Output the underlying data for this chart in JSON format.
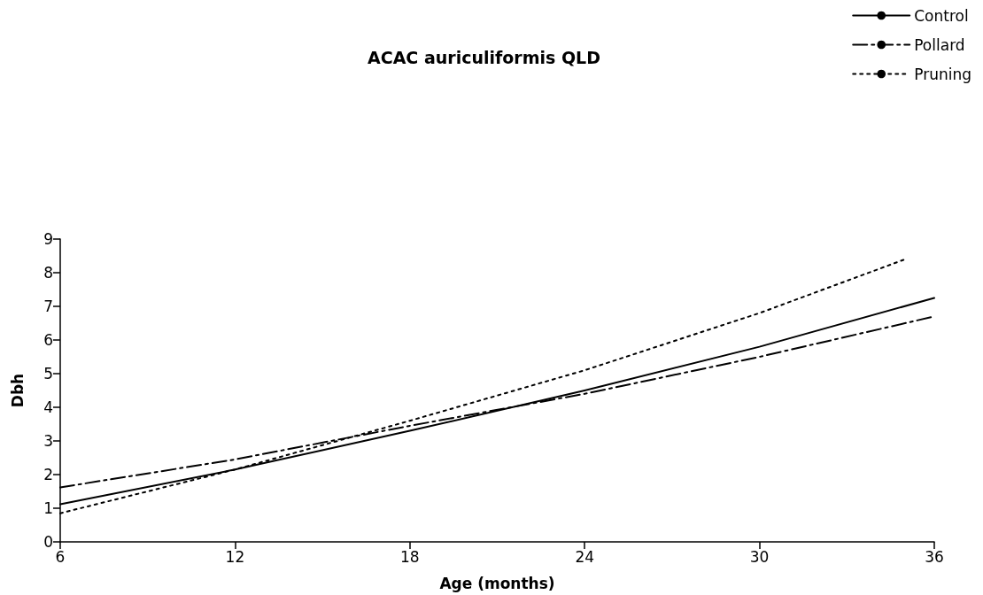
{
  "chart_data": {
    "type": "line",
    "title": "ACAC auriculiformis QLD",
    "xlabel": "Age (months)",
    "ylabel": "Dbh",
    "x": [
      6,
      12,
      18,
      24,
      30,
      36
    ],
    "series": [
      {
        "name": "Control",
        "color": "#000000",
        "line_style": "solid",
        "values": [
          1.12,
          2.15,
          3.3,
          4.5,
          5.8,
          7.25
        ]
      },
      {
        "name": "Pollard",
        "color": "#000000",
        "line_style": "dashdot",
        "values": [
          1.62,
          2.45,
          3.45,
          4.4,
          5.5,
          6.7
        ]
      },
      {
        "name": "Pruning",
        "color": "#000000",
        "line_style": "dotted",
        "x": [
          6,
          12,
          18,
          24,
          30,
          35
        ],
        "values": [
          0.85,
          2.15,
          3.6,
          5.1,
          6.8,
          8.4
        ]
      }
    ],
    "xlim": [
      6,
      36
    ],
    "xticks": [
      6,
      12,
      18,
      24,
      30,
      36
    ],
    "ylim": [
      0,
      9
    ],
    "yticks": [
      0,
      1,
      2,
      3,
      4,
      5,
      6,
      7,
      8,
      9
    ],
    "grid": false,
    "legend": "top right",
    "marker": "none"
  }
}
